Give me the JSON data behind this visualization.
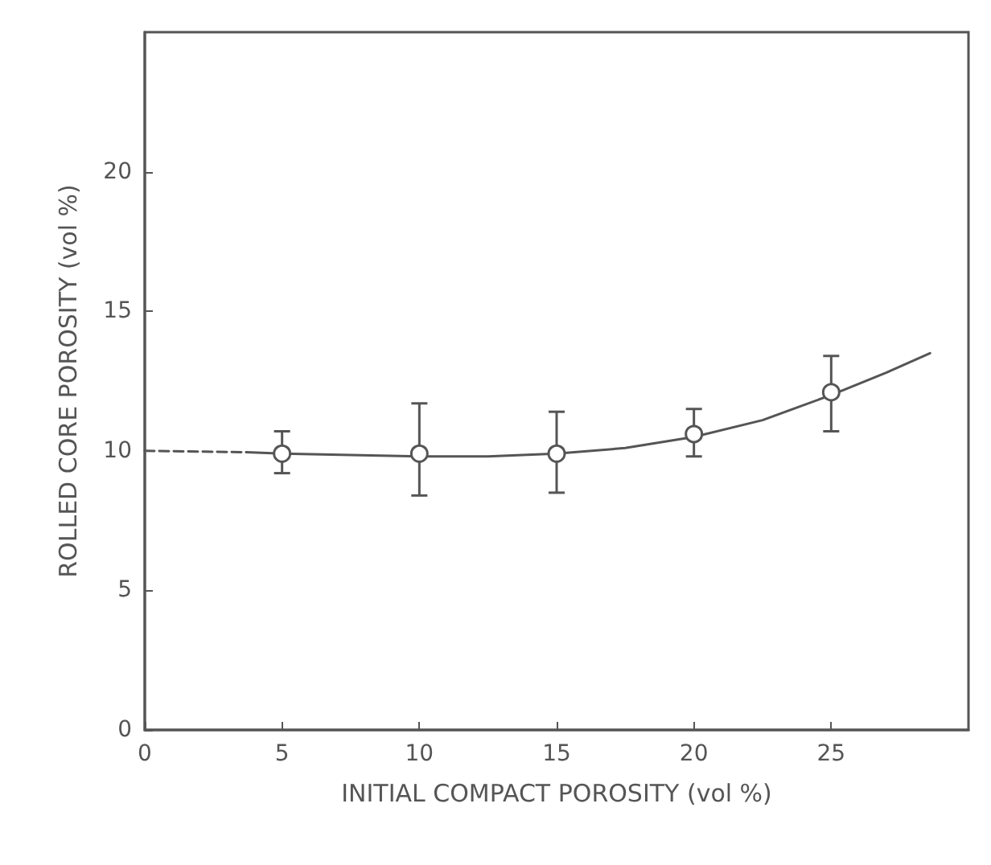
{
  "chart_data": {
    "type": "scatter",
    "xlabel": "INITIAL COMPACT POROSITY (vol %)",
    "ylabel": "ROLLED CORE POROSITY (vol %)",
    "xlim": [
      0,
      30
    ],
    "xticks": [
      0,
      5,
      10,
      15,
      20,
      25
    ],
    "ylim": [
      0,
      25
    ],
    "yticks": [
      0,
      5,
      10,
      15,
      20
    ],
    "series": [
      {
        "type": "line",
        "line_style": "dashed",
        "marker": "none",
        "color": "#555555",
        "x": [
          0,
          3.7
        ],
        "values": [
          10.0,
          9.95
        ]
      },
      {
        "type": "line",
        "line_style": "solid",
        "marker": "none",
        "color": "#555555",
        "x": [
          3.7,
          5,
          7.5,
          10,
          12.5,
          15,
          17.5,
          20,
          22.5,
          25,
          27,
          28.6
        ],
        "values": [
          9.95,
          9.9,
          9.85,
          9.8,
          9.8,
          9.9,
          10.1,
          10.5,
          11.1,
          12.0,
          12.8,
          13.5
        ]
      },
      {
        "marker": "circle",
        "color": "#555555",
        "x": [
          5,
          10,
          15,
          20,
          25
        ],
        "values": [
          9.9,
          9.9,
          9.9,
          10.6,
          12.1
        ],
        "errors": [
          [
            9.2,
            10.7
          ],
          [
            8.4,
            11.7
          ],
          [
            8.5,
            11.4
          ],
          [
            9.8,
            11.5
          ],
          [
            10.7,
            13.4
          ]
        ]
      }
    ]
  }
}
